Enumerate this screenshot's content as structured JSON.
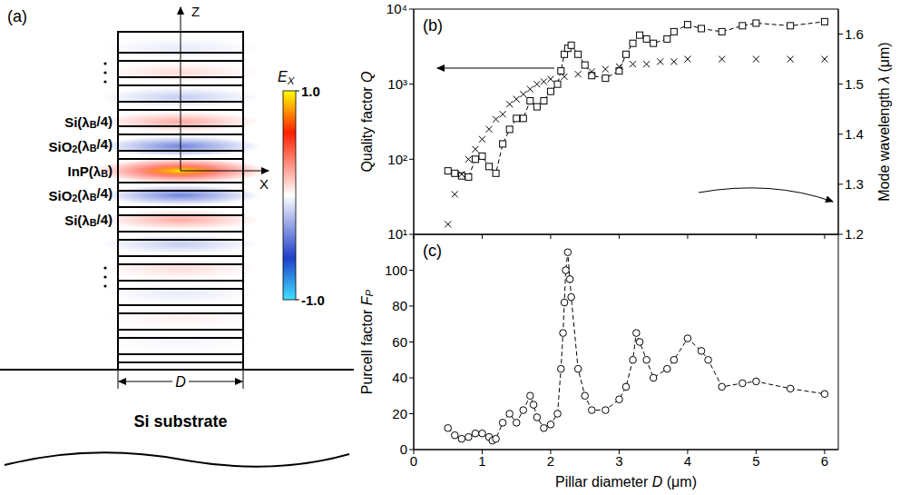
{
  "panel_a": {
    "label": "(a)",
    "axes": [
      "Z",
      "X"
    ],
    "layers": [
      "Si(λB/4)",
      "SiO2(λB/4)",
      "InP(λB)",
      "SiO2(λB/4)",
      "Si(λB/4)"
    ],
    "width_label": "D",
    "substrate": "Si substrate",
    "colorbar": {
      "title": "EX",
      "range": [
        -1,
        1
      ],
      "ticks": [
        {
          "value": 1,
          "label": "1.0"
        },
        {
          "value": -1,
          "label": "-1.0"
        }
      ]
    }
  },
  "chart_data": [
    {
      "type": "scatter",
      "title": "(b)",
      "ylabel": "Quality factor Q",
      "y2label": "Mode wavelength λ (μm)",
      "xlim": [
        0,
        6.2
      ],
      "xticks": [
        0,
        1,
        2,
        3,
        4,
        5,
        6
      ],
      "tick_labels": "y",
      "log": "y",
      "grid": false,
      "ylim": [
        10,
        10000
      ],
      "yticks": [
        {
          "value": 10,
          "label": "10¹"
        },
        {
          "value": 100,
          "label": "10²"
        },
        {
          "value": 1000,
          "label": "10³"
        },
        {
          "value": 10000,
          "label": "10⁴"
        }
      ],
      "y2lim": [
        1.2,
        1.65
      ],
      "y2ticks": [
        1.2,
        1.3,
        1.4,
        1.5,
        1.6
      ],
      "series": [
        {
          "color": "#000000",
          "marker": "square",
          "line_style": "dashed",
          "x": [
            0.5,
            0.6,
            0.7,
            0.8,
            0.9,
            1.0,
            1.1,
            1.2,
            1.3,
            1.4,
            1.5,
            1.6,
            1.7,
            1.8,
            1.9,
            2.0,
            2.1,
            2.15,
            2.2,
            2.25,
            2.3,
            2.4,
            2.5,
            2.6,
            2.8,
            3.0,
            3.1,
            3.2,
            3.3,
            3.4,
            3.5,
            3.7,
            3.8,
            4.0,
            4.2,
            4.5,
            4.8,
            5.0,
            5.5,
            6.0
          ],
          "values": [
            70,
            65,
            60,
            58,
            100,
            110,
            80,
            65,
            160,
            250,
            350,
            350,
            600,
            500,
            600,
            800,
            1000,
            1500,
            2500,
            3000,
            3300,
            2500,
            1800,
            1300,
            1200,
            1500,
            2500,
            3500,
            4500,
            4000,
            3500,
            4000,
            5000,
            6200,
            5500,
            5000,
            6000,
            6500,
            6000,
            6800
          ]
        },
        {
          "color": "#000000",
          "marker": "x",
          "line_style": "none",
          "axis": "y2",
          "x": [
            0.5,
            0.6,
            0.7,
            0.8,
            0.9,
            1.0,
            1.1,
            1.2,
            1.3,
            1.4,
            1.5,
            1.6,
            1.7,
            1.8,
            1.9,
            2.0,
            2.2,
            2.4,
            2.6,
            2.8,
            3.0,
            3.2,
            3.4,
            3.6,
            3.8,
            4.0,
            4.5,
            5.0,
            5.5,
            6.0
          ],
          "values": [
            1.22,
            1.28,
            1.32,
            1.35,
            1.37,
            1.39,
            1.41,
            1.43,
            1.44,
            1.46,
            1.47,
            1.48,
            1.49,
            1.5,
            1.505,
            1.51,
            1.515,
            1.52,
            1.525,
            1.53,
            1.535,
            1.54,
            1.54,
            1.545,
            1.545,
            1.55,
            1.55,
            1.55,
            1.55,
            1.55
          ]
        }
      ]
    },
    {
      "type": "scatter",
      "title": "(c)",
      "xlabel": "Pillar diameter D (μm)",
      "ylabel": "Purcell factor FP",
      "xlim": [
        0,
        6.2
      ],
      "xticks": [
        0,
        1,
        2,
        3,
        4,
        5,
        6
      ],
      "grid": false,
      "ylim": [
        0,
        120
      ],
      "yticks": [
        0,
        20,
        40,
        60,
        80,
        100
      ],
      "series": [
        {
          "color": "#000000",
          "marker": "circle",
          "line_style": "dashed",
          "x": [
            0.5,
            0.6,
            0.7,
            0.8,
            0.9,
            1.0,
            1.1,
            1.15,
            1.2,
            1.3,
            1.4,
            1.5,
            1.6,
            1.7,
            1.75,
            1.8,
            1.9,
            2.0,
            2.1,
            2.15,
            2.18,
            2.2,
            2.22,
            2.25,
            2.28,
            2.3,
            2.4,
            2.5,
            2.6,
            2.8,
            3.0,
            3.1,
            3.2,
            3.25,
            3.3,
            3.4,
            3.5,
            3.7,
            3.8,
            4.0,
            4.2,
            4.3,
            4.5,
            4.8,
            5.0,
            5.5,
            6.0
          ],
          "values": [
            12,
            8,
            6,
            7,
            9,
            9,
            7,
            5,
            6,
            15,
            20,
            15,
            22,
            30,
            25,
            18,
            12,
            14,
            20,
            45,
            65,
            82,
            100,
            110,
            95,
            85,
            45,
            30,
            22,
            22,
            28,
            35,
            50,
            65,
            60,
            50,
            40,
            45,
            50,
            62,
            55,
            50,
            35,
            37,
            38,
            34,
            31
          ]
        }
      ]
    }
  ]
}
